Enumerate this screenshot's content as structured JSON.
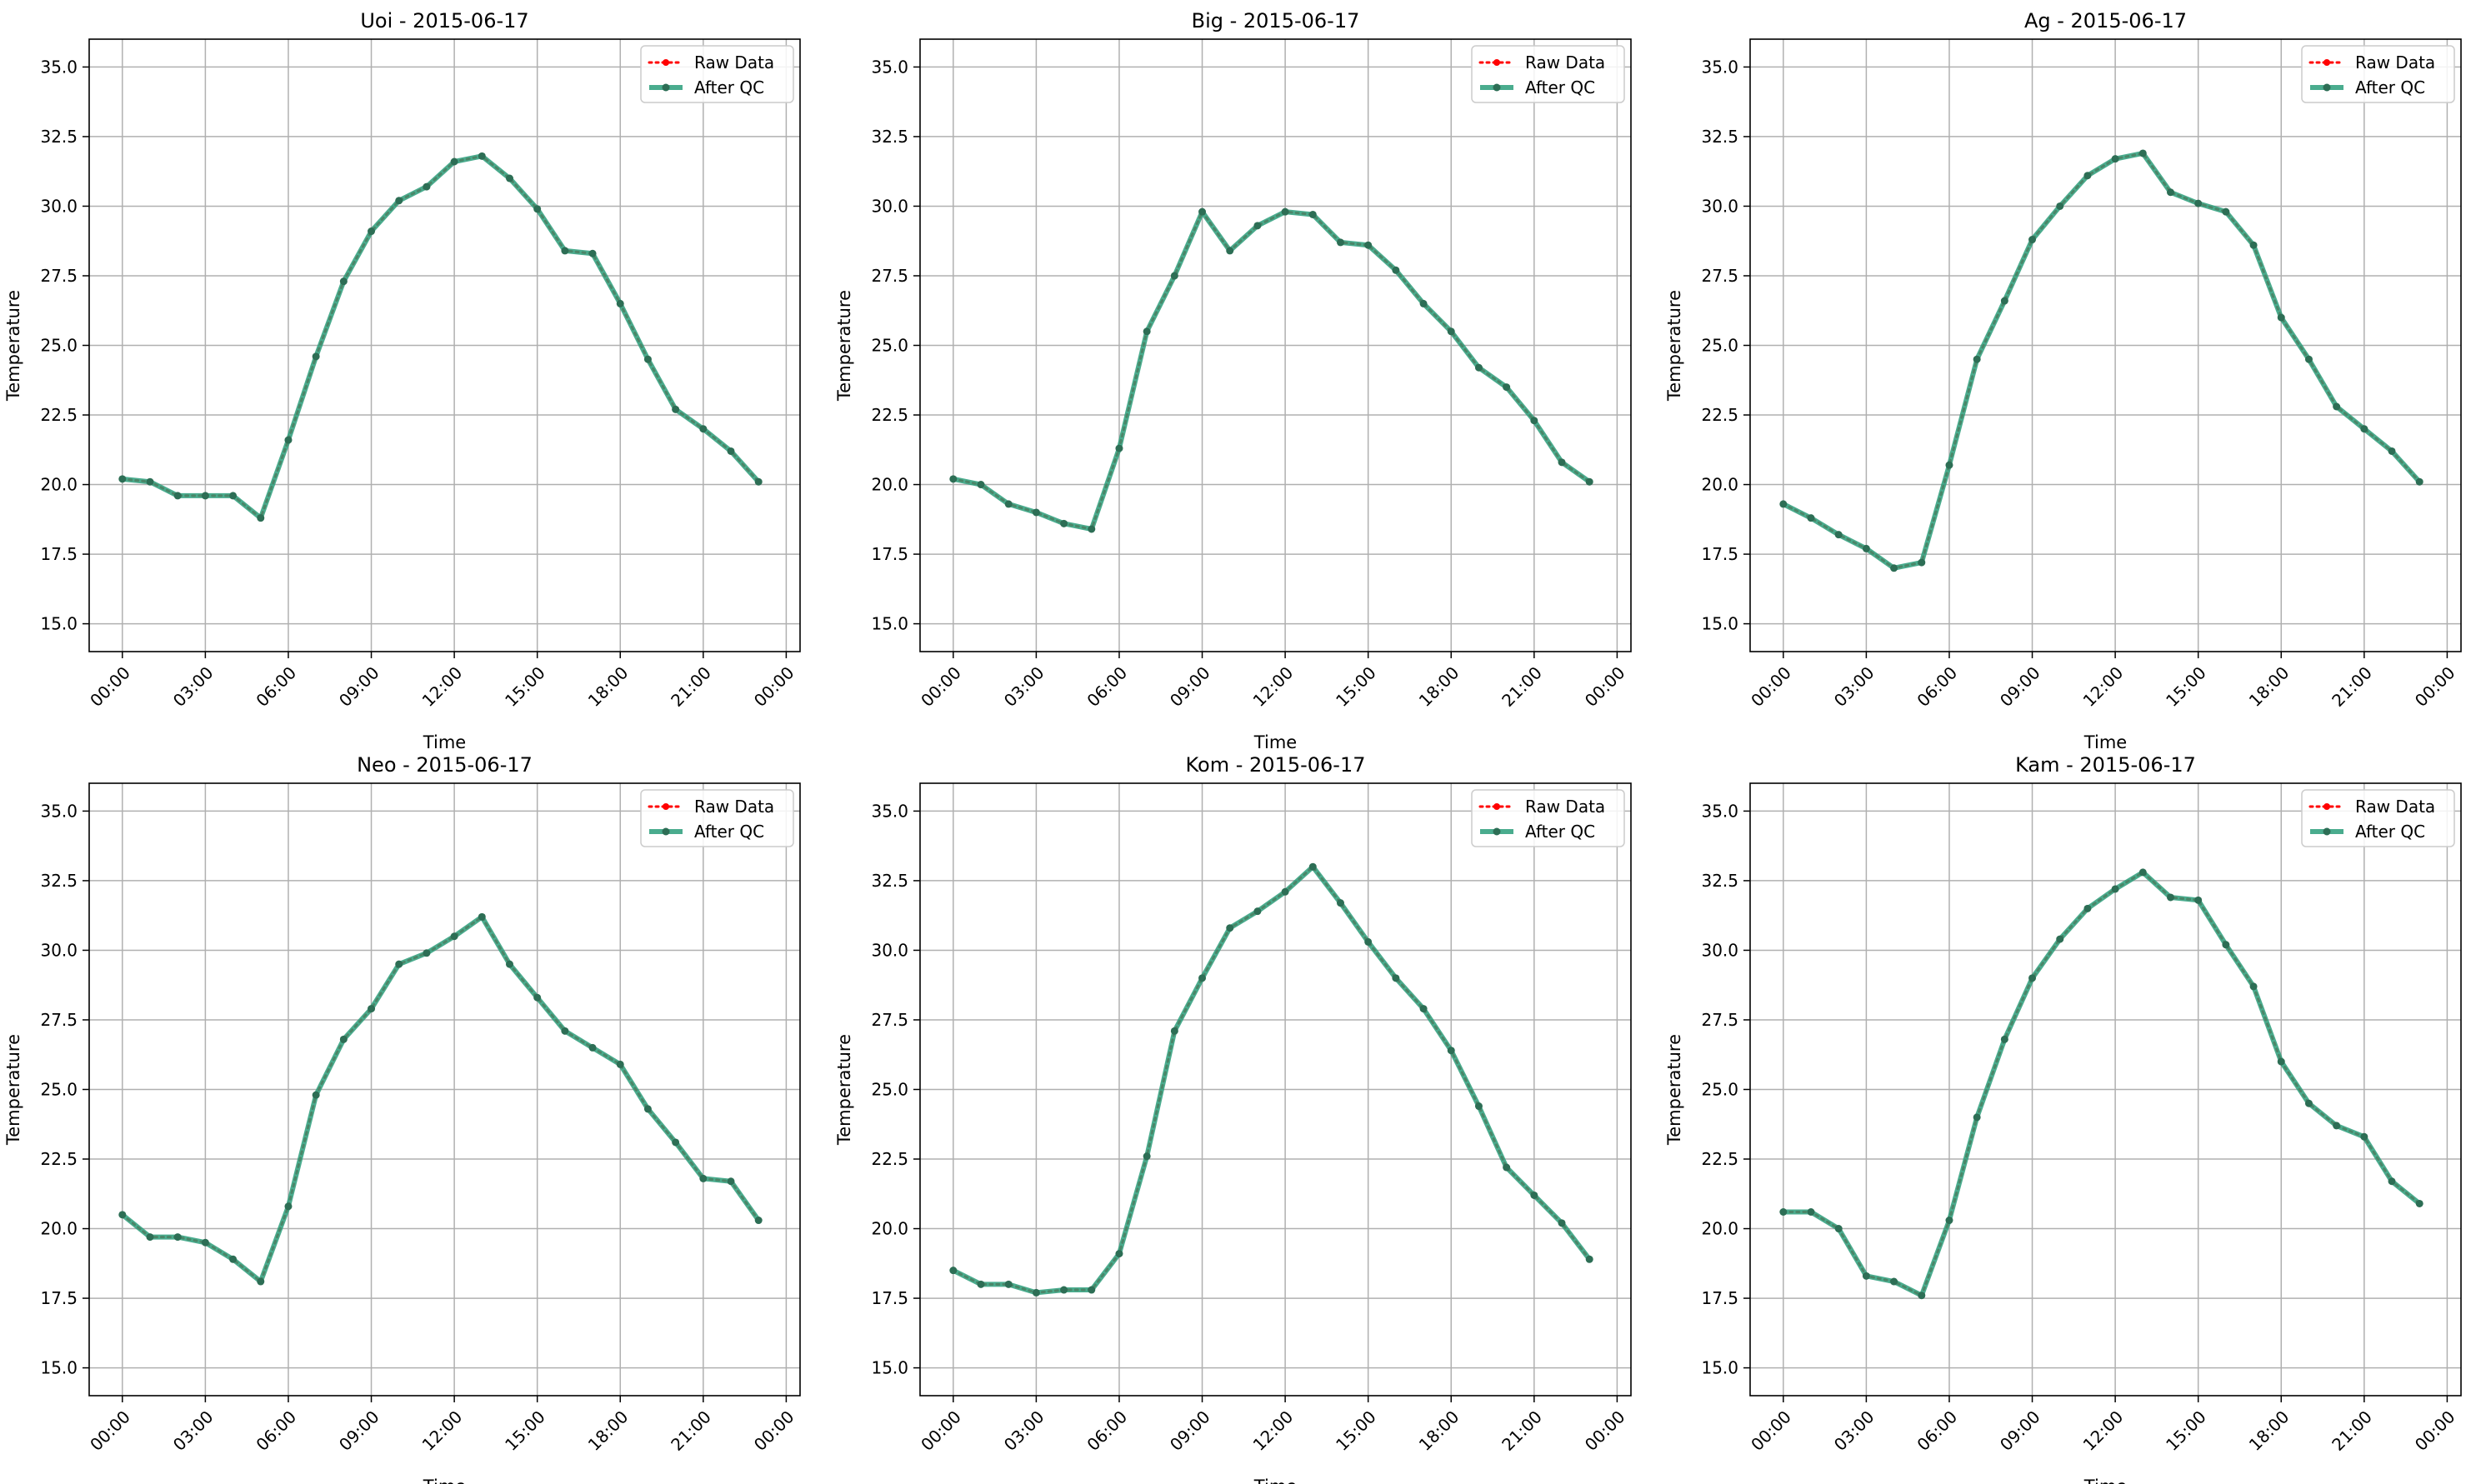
{
  "style": {
    "raw_color": "#ff0000",
    "qc_color": "#2a9d7a",
    "qc_marker_color": "#2d6e55",
    "grid_color": "#b0b0b0"
  },
  "chart_data": [
    {
      "type": "line",
      "title": "Uoi - 2015-06-17",
      "xlabel": "Time",
      "ylabel": "Temperature",
      "x": [
        0,
        1,
        2,
        3,
        4,
        5,
        6,
        7,
        8,
        9,
        10,
        11,
        12,
        13,
        14,
        15,
        16,
        17,
        18,
        19,
        20,
        21,
        22,
        23
      ],
      "xticks": [
        "00:00",
        "03:00",
        "06:00",
        "09:00",
        "12:00",
        "15:00",
        "18:00",
        "21:00",
        "00:00"
      ],
      "yticks": [
        "15.0",
        "17.5",
        "20.0",
        "22.5",
        "25.0",
        "27.5",
        "30.0",
        "32.5",
        "35.0"
      ],
      "xlim": [
        -1.2,
        24.5
      ],
      "ylim": [
        14,
        36
      ],
      "grid": true,
      "legend_position": "top-right",
      "series": [
        {
          "name": "Raw Data",
          "style": "dotted-marker",
          "values": [
            20.2,
            20.1,
            19.6,
            19.6,
            19.6,
            18.8,
            21.6,
            24.6,
            27.3,
            29.1,
            30.2,
            30.7,
            31.6,
            31.8,
            31.0,
            29.9,
            28.4,
            28.3,
            26.5,
            24.5,
            22.7,
            22.0,
            21.2,
            20.1
          ]
        },
        {
          "name": "After QC",
          "style": "solid-marker",
          "values": [
            20.2,
            20.1,
            19.6,
            19.6,
            19.6,
            18.8,
            21.6,
            24.6,
            27.3,
            29.1,
            30.2,
            30.7,
            31.6,
            31.8,
            31.0,
            29.9,
            28.4,
            28.3,
            26.5,
            24.5,
            22.7,
            22.0,
            21.2,
            20.1
          ]
        }
      ]
    },
    {
      "type": "line",
      "title": "Big - 2015-06-17",
      "xlabel": "Time",
      "ylabel": "Temperature",
      "x": [
        0,
        1,
        2,
        3,
        4,
        5,
        6,
        7,
        8,
        9,
        10,
        11,
        12,
        13,
        14,
        15,
        16,
        17,
        18,
        19,
        20,
        21,
        22,
        23
      ],
      "xticks": [
        "00:00",
        "03:00",
        "06:00",
        "09:00",
        "12:00",
        "15:00",
        "18:00",
        "21:00",
        "00:00"
      ],
      "yticks": [
        "15.0",
        "17.5",
        "20.0",
        "22.5",
        "25.0",
        "27.5",
        "30.0",
        "32.5",
        "35.0"
      ],
      "xlim": [
        -1.2,
        24.5
      ],
      "ylim": [
        14,
        36
      ],
      "grid": true,
      "legend_position": "top-right",
      "series": [
        {
          "name": "Raw Data",
          "style": "dotted-marker",
          "values": [
            20.2,
            20.0,
            19.3,
            19.0,
            18.6,
            18.4,
            21.3,
            25.5,
            27.5,
            29.8,
            28.4,
            29.3,
            29.8,
            29.7,
            28.7,
            28.6,
            27.7,
            26.5,
            25.5,
            24.2,
            23.5,
            22.3,
            20.8,
            20.1
          ]
        },
        {
          "name": "After QC",
          "style": "solid-marker",
          "values": [
            20.2,
            20.0,
            19.3,
            19.0,
            18.6,
            18.4,
            21.3,
            25.5,
            27.5,
            29.8,
            28.4,
            29.3,
            29.8,
            29.7,
            28.7,
            28.6,
            27.7,
            26.5,
            25.5,
            24.2,
            23.5,
            22.3,
            20.8,
            20.1
          ]
        }
      ]
    },
    {
      "type": "line",
      "title": "Ag - 2015-06-17",
      "xlabel": "Time",
      "ylabel": "Temperature",
      "x": [
        0,
        1,
        2,
        3,
        4,
        5,
        6,
        7,
        8,
        9,
        10,
        11,
        12,
        13,
        14,
        15,
        16,
        17,
        18,
        19,
        20,
        21,
        22,
        23
      ],
      "xticks": [
        "00:00",
        "03:00",
        "06:00",
        "09:00",
        "12:00",
        "15:00",
        "18:00",
        "21:00",
        "00:00"
      ],
      "yticks": [
        "15.0",
        "17.5",
        "20.0",
        "22.5",
        "25.0",
        "27.5",
        "30.0",
        "32.5",
        "35.0"
      ],
      "xlim": [
        -1.2,
        24.5
      ],
      "ylim": [
        14,
        36
      ],
      "grid": true,
      "legend_position": "top-right",
      "series": [
        {
          "name": "Raw Data",
          "style": "dotted-marker",
          "values": [
            19.3,
            18.8,
            18.2,
            17.7,
            17.0,
            17.2,
            20.7,
            24.5,
            26.6,
            28.8,
            30.0,
            31.1,
            31.7,
            31.9,
            30.5,
            30.1,
            29.8,
            28.6,
            26.0,
            24.5,
            22.8,
            22.0,
            21.2,
            20.1
          ]
        },
        {
          "name": "After QC",
          "style": "solid-marker",
          "values": [
            19.3,
            18.8,
            18.2,
            17.7,
            17.0,
            17.2,
            20.7,
            24.5,
            26.6,
            28.8,
            30.0,
            31.1,
            31.7,
            31.9,
            30.5,
            30.1,
            29.8,
            28.6,
            26.0,
            24.5,
            22.8,
            22.0,
            21.2,
            20.1
          ]
        }
      ]
    },
    {
      "type": "line",
      "title": "Neo - 2015-06-17",
      "xlabel": "Time",
      "ylabel": "Temperature",
      "x": [
        0,
        1,
        2,
        3,
        4,
        5,
        6,
        7,
        8,
        9,
        10,
        11,
        12,
        13,
        14,
        15,
        16,
        17,
        18,
        19,
        20,
        21,
        22,
        23
      ],
      "xticks": [
        "00:00",
        "03:00",
        "06:00",
        "09:00",
        "12:00",
        "15:00",
        "18:00",
        "21:00",
        "00:00"
      ],
      "yticks": [
        "15.0",
        "17.5",
        "20.0",
        "22.5",
        "25.0",
        "27.5",
        "30.0",
        "32.5",
        "35.0"
      ],
      "xlim": [
        -1.2,
        24.5
      ],
      "ylim": [
        14,
        36
      ],
      "grid": true,
      "legend_position": "top-right",
      "series": [
        {
          "name": "Raw Data",
          "style": "dotted-marker",
          "values": [
            20.5,
            19.7,
            19.7,
            19.5,
            18.9,
            18.1,
            20.8,
            24.8,
            26.8,
            27.9,
            29.5,
            29.9,
            30.5,
            31.2,
            29.5,
            28.3,
            27.1,
            26.5,
            25.9,
            24.3,
            23.1,
            21.8,
            21.7,
            20.3
          ]
        },
        {
          "name": "After QC",
          "style": "solid-marker",
          "values": [
            20.5,
            19.7,
            19.7,
            19.5,
            18.9,
            18.1,
            20.8,
            24.8,
            26.8,
            27.9,
            29.5,
            29.9,
            30.5,
            31.2,
            29.5,
            28.3,
            27.1,
            26.5,
            25.9,
            24.3,
            23.1,
            21.8,
            21.7,
            20.3
          ]
        }
      ]
    },
    {
      "type": "line",
      "title": "Kom - 2015-06-17",
      "xlabel": "Time",
      "ylabel": "Temperature",
      "x": [
        0,
        1,
        2,
        3,
        4,
        5,
        6,
        7,
        8,
        9,
        10,
        11,
        12,
        13,
        14,
        15,
        16,
        17,
        18,
        19,
        20,
        21,
        22,
        23
      ],
      "xticks": [
        "00:00",
        "03:00",
        "06:00",
        "09:00",
        "12:00",
        "15:00",
        "18:00",
        "21:00",
        "00:00"
      ],
      "yticks": [
        "15.0",
        "17.5",
        "20.0",
        "22.5",
        "25.0",
        "27.5",
        "30.0",
        "32.5",
        "35.0"
      ],
      "xlim": [
        -1.2,
        24.5
      ],
      "ylim": [
        14,
        36
      ],
      "grid": true,
      "legend_position": "top-right",
      "series": [
        {
          "name": "Raw Data",
          "style": "dotted-marker",
          "values": [
            18.5,
            18.0,
            18.0,
            17.7,
            17.8,
            17.8,
            19.1,
            22.6,
            27.1,
            29.0,
            30.8,
            31.4,
            32.1,
            33.0,
            31.7,
            30.3,
            29.0,
            27.9,
            26.4,
            24.4,
            22.2,
            21.2,
            20.2,
            18.9
          ]
        },
        {
          "name": "After QC",
          "style": "solid-marker",
          "values": [
            18.5,
            18.0,
            18.0,
            17.7,
            17.8,
            17.8,
            19.1,
            22.6,
            27.1,
            29.0,
            30.8,
            31.4,
            32.1,
            33.0,
            31.7,
            30.3,
            29.0,
            27.9,
            26.4,
            24.4,
            22.2,
            21.2,
            20.2,
            18.9
          ]
        }
      ]
    },
    {
      "type": "line",
      "title": "Kam - 2015-06-17",
      "xlabel": "Time",
      "ylabel": "Temperature",
      "x": [
        0,
        1,
        2,
        3,
        4,
        5,
        6,
        7,
        8,
        9,
        10,
        11,
        12,
        13,
        14,
        15,
        16,
        17,
        18,
        19,
        20,
        21,
        22,
        23
      ],
      "xticks": [
        "00:00",
        "03:00",
        "06:00",
        "09:00",
        "12:00",
        "15:00",
        "18:00",
        "21:00",
        "00:00"
      ],
      "yticks": [
        "15.0",
        "17.5",
        "20.0",
        "22.5",
        "25.0",
        "27.5",
        "30.0",
        "32.5",
        "35.0"
      ],
      "xlim": [
        -1.2,
        24.5
      ],
      "ylim": [
        14,
        36
      ],
      "grid": true,
      "legend_position": "top-right",
      "series": [
        {
          "name": "Raw Data",
          "style": "dotted-marker",
          "values": [
            20.6,
            20.6,
            20.0,
            18.3,
            18.1,
            17.6,
            20.3,
            24.0,
            26.8,
            29.0,
            30.4,
            31.5,
            32.2,
            32.8,
            31.9,
            31.8,
            30.2,
            28.7,
            26.0,
            24.5,
            23.7,
            23.3,
            21.7,
            20.9
          ]
        },
        {
          "name": "After QC",
          "style": "solid-marker",
          "values": [
            20.6,
            20.6,
            20.0,
            18.3,
            18.1,
            17.6,
            20.3,
            24.0,
            26.8,
            29.0,
            30.4,
            31.5,
            32.2,
            32.8,
            31.9,
            31.8,
            30.2,
            28.7,
            26.0,
            24.5,
            23.7,
            23.3,
            21.7,
            20.9
          ]
        }
      ]
    }
  ]
}
